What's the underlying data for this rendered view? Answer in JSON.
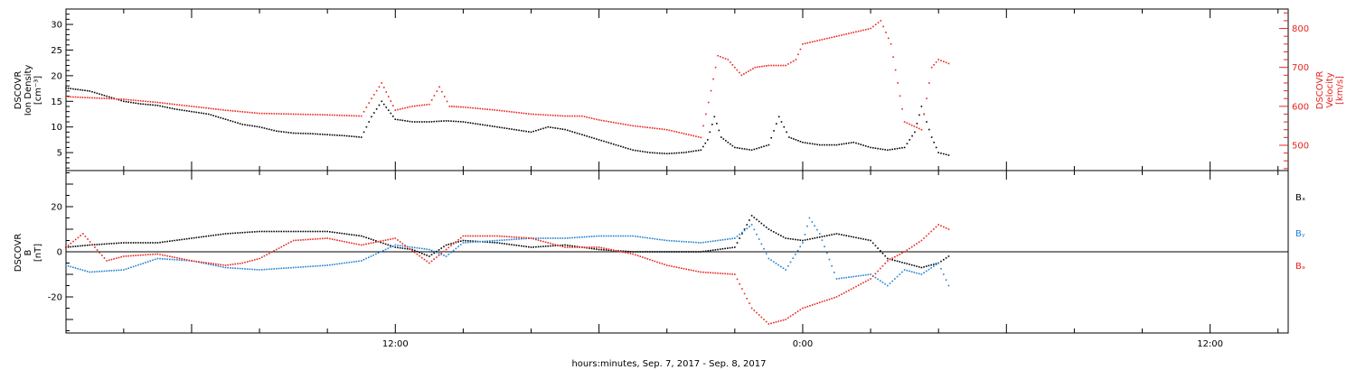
{
  "figure": {
    "xlabel": "hours:minutes, Sep.  7, 2017 - Sep.  8, 2017"
  },
  "colors": {
    "black": "#000000",
    "red": "#e8231e",
    "blue": "#1f7fd0"
  },
  "chart_data": [
    {
      "type": "scatter",
      "panel": "density-velocity",
      "x_axis": {
        "unit": "hours since 2017-09-07 00:00 UT",
        "range": [
          2.3,
          38.3
        ],
        "tick_labels": [
          {
            "x": 12,
            "label": "12:00"
          },
          {
            "x": 24,
            "label": "0:00"
          },
          {
            "x": 36,
            "label": "12:00"
          }
        ]
      },
      "ylabel_left": [
        "DSCOVR",
        "Ion Density",
        "[cm⁻³]"
      ],
      "ylim_left": [
        1.5,
        33
      ],
      "yticks_left": [
        5,
        10,
        15,
        20,
        25,
        30
      ],
      "ylabel_right": [
        "DSCOVR",
        "Velocity",
        "[km/s]"
      ],
      "ylim_right": [
        435,
        850
      ],
      "yticks_right": [
        500,
        600,
        700,
        800
      ],
      "series": [
        {
          "name": "",
          "axis": "left",
          "color": "black",
          "points": [
            [
              2.3,
              17.6
            ],
            [
              3,
              17
            ],
            [
              3.5,
              16
            ],
            [
              4,
              15
            ],
            [
              4.5,
              14.5
            ],
            [
              5,
              14.2
            ],
            [
              5.5,
              13.5
            ],
            [
              6,
              13
            ],
            [
              6.5,
              12.5
            ],
            [
              7,
              11.5
            ],
            [
              7.5,
              10.5
            ],
            [
              8,
              10
            ],
            [
              8.5,
              9.2
            ],
            [
              9,
              8.8
            ],
            [
              9.5,
              8.7
            ],
            [
              10,
              8.5
            ],
            [
              10.5,
              8.3
            ],
            [
              11,
              8
            ],
            [
              11.3,
              12
            ],
            [
              11.6,
              15
            ],
            [
              12,
              11.5
            ],
            [
              12.5,
              11
            ],
            [
              13,
              11
            ],
            [
              13.5,
              11.2
            ],
            [
              14,
              11
            ],
            [
              14.5,
              10.5
            ],
            [
              15,
              10
            ],
            [
              15.5,
              9.5
            ],
            [
              16,
              9
            ],
            [
              16.5,
              10
            ],
            [
              17,
              9.5
            ],
            [
              17.5,
              8.5
            ],
            [
              18,
              7.5
            ],
            [
              18.5,
              6.5
            ],
            [
              19,
              5.5
            ],
            [
              19.5,
              5
            ],
            [
              20,
              4.8
            ],
            [
              20.5,
              5
            ],
            [
              21,
              5.5
            ],
            [
              21.2,
              7.5
            ],
            [
              21.4,
              12
            ],
            [
              21.6,
              8
            ],
            [
              22,
              6
            ],
            [
              22.5,
              5.5
            ],
            [
              23,
              6.5
            ],
            [
              23.3,
              12
            ],
            [
              23.6,
              8
            ],
            [
              24,
              7
            ],
            [
              24.5,
              6.5
            ],
            [
              25,
              6.5
            ],
            [
              25.5,
              7
            ],
            [
              26,
              6
            ],
            [
              26.5,
              5.5
            ],
            [
              27,
              6
            ],
            [
              27.3,
              9
            ],
            [
              27.5,
              14
            ],
            [
              27.8,
              8
            ],
            [
              28,
              5
            ],
            [
              28.3,
              4.5
            ]
          ]
        },
        {
          "name": "",
          "axis": "right",
          "color": "red",
          "points": [
            [
              2.3,
              625
            ],
            [
              3,
              622
            ],
            [
              4,
              618
            ],
            [
              5,
              610
            ],
            [
              6,
              600
            ],
            [
              7,
              590
            ],
            [
              8,
              582
            ],
            [
              9,
              580
            ],
            [
              10,
              578
            ],
            [
              11,
              575
            ],
            [
              11.3,
              620
            ],
            [
              11.6,
              660
            ],
            [
              12,
              590
            ],
            [
              12.5,
              600
            ],
            [
              13,
              605
            ],
            [
              13.3,
              650
            ],
            [
              13.6,
              600
            ],
            [
              14,
              598
            ],
            [
              15,
              590
            ],
            [
              16,
              580
            ],
            [
              17,
              575
            ],
            [
              17.5,
              575
            ],
            [
              18,
              565
            ],
            [
              19,
              550
            ],
            [
              20,
              540
            ],
            [
              21,
              520
            ],
            [
              21.3,
              640
            ],
            [
              21.5,
              730
            ],
            [
              21.8,
              720
            ],
            [
              22.2,
              680
            ],
            [
              22.6,
              700
            ],
            [
              23,
              705
            ],
            [
              23.5,
              705
            ],
            [
              23.8,
              720
            ],
            [
              24,
              760
            ],
            [
              24.5,
              770
            ],
            [
              25,
              780
            ],
            [
              25.5,
              790
            ],
            [
              26,
              800
            ],
            [
              26.3,
              820
            ],
            [
              26.6,
              760
            ],
            [
              27,
              560
            ],
            [
              27.5,
              540
            ],
            [
              27.8,
              700
            ],
            [
              28,
              720
            ],
            [
              28.3,
              710
            ]
          ]
        }
      ]
    },
    {
      "type": "scatter",
      "panel": "magnetic-field",
      "x_axis": {
        "unit": "hours since 2017-09-07 00:00 UT",
        "range": [
          2.3,
          38.3
        ]
      },
      "ylabel": [
        "DSCOVR",
        "B",
        "[nT]"
      ],
      "ylim": [
        -36,
        36
      ],
      "yticks": [
        -20,
        0,
        20
      ],
      "zero_line": true,
      "legend": [
        {
          "name": "Bₓ",
          "color": "black"
        },
        {
          "name": "Bᵧ",
          "color": "blue"
        },
        {
          "name": "Bₔ",
          "color": "red"
        }
      ],
      "legend_placement": "right",
      "series": [
        {
          "name": "Bx",
          "color": "black",
          "points": [
            [
              2.3,
              2
            ],
            [
              3,
              3
            ],
            [
              4,
              4
            ],
            [
              5,
              4
            ],
            [
              6,
              6
            ],
            [
              7,
              8
            ],
            [
              8,
              9
            ],
            [
              9,
              9
            ],
            [
              10,
              9
            ],
            [
              11,
              7
            ],
            [
              12,
              2
            ],
            [
              12.5,
              1
            ],
            [
              13,
              -2
            ],
            [
              13.5,
              3
            ],
            [
              14,
              5
            ],
            [
              15,
              4
            ],
            [
              16,
              2
            ],
            [
              17,
              3
            ],
            [
              18,
              1
            ],
            [
              19,
              0
            ],
            [
              20,
              0
            ],
            [
              21,
              0
            ],
            [
              22,
              2
            ],
            [
              22.5,
              16
            ],
            [
              23,
              10
            ],
            [
              23.5,
              6
            ],
            [
              24,
              5
            ],
            [
              25,
              8
            ],
            [
              26,
              5
            ],
            [
              26.5,
              -3
            ],
            [
              27,
              -5
            ],
            [
              27.5,
              -7
            ],
            [
              28,
              -5
            ],
            [
              28.3,
              -2
            ]
          ]
        },
        {
          "name": "By",
          "color": "blue",
          "points": [
            [
              2.3,
              -6
            ],
            [
              3,
              -9
            ],
            [
              4,
              -8
            ],
            [
              5,
              -3
            ],
            [
              6,
              -4
            ],
            [
              7,
              -7
            ],
            [
              8,
              -8
            ],
            [
              9,
              -7
            ],
            [
              10,
              -6
            ],
            [
              11,
              -4
            ],
            [
              12,
              3
            ],
            [
              13,
              1
            ],
            [
              13.5,
              -2
            ],
            [
              14,
              4
            ],
            [
              15,
              5
            ],
            [
              16,
              6
            ],
            [
              17,
              6
            ],
            [
              18,
              7
            ],
            [
              19,
              7
            ],
            [
              20,
              5
            ],
            [
              21,
              4
            ],
            [
              22,
              6
            ],
            [
              22.5,
              12
            ],
            [
              23,
              -3
            ],
            [
              23.5,
              -8
            ],
            [
              24,
              4
            ],
            [
              24.2,
              15
            ],
            [
              24.5,
              8
            ],
            [
              25,
              -12
            ],
            [
              26,
              -10
            ],
            [
              26.5,
              -15
            ],
            [
              27,
              -8
            ],
            [
              27.5,
              -10
            ],
            [
              28,
              -5
            ],
            [
              28.3,
              -15
            ]
          ]
        },
        {
          "name": "Bz",
          "color": "red",
          "points": [
            [
              2.3,
              2
            ],
            [
              2.8,
              8
            ],
            [
              3.5,
              -4
            ],
            [
              4,
              -2
            ],
            [
              5,
              -1
            ],
            [
              6,
              -4
            ],
            [
              7,
              -6
            ],
            [
              7.5,
              -5
            ],
            [
              8,
              -3
            ],
            [
              9,
              5
            ],
            [
              10,
              6
            ],
            [
              11,
              3
            ],
            [
              12,
              6
            ],
            [
              13,
              -5
            ],
            [
              14,
              7
            ],
            [
              15,
              7
            ],
            [
              16,
              6
            ],
            [
              17,
              2
            ],
            [
              18,
              2
            ],
            [
              19,
              -1
            ],
            [
              20,
              -6
            ],
            [
              21,
              -9
            ],
            [
              22,
              -10
            ],
            [
              22.5,
              -25
            ],
            [
              23,
              -32
            ],
            [
              23.5,
              -30
            ],
            [
              24,
              -25
            ],
            [
              25,
              -20
            ],
            [
              26,
              -12
            ],
            [
              26.5,
              -4
            ],
            [
              27,
              0
            ],
            [
              27.5,
              5
            ],
            [
              28,
              12
            ],
            [
              28.3,
              10
            ]
          ]
        }
      ]
    }
  ]
}
